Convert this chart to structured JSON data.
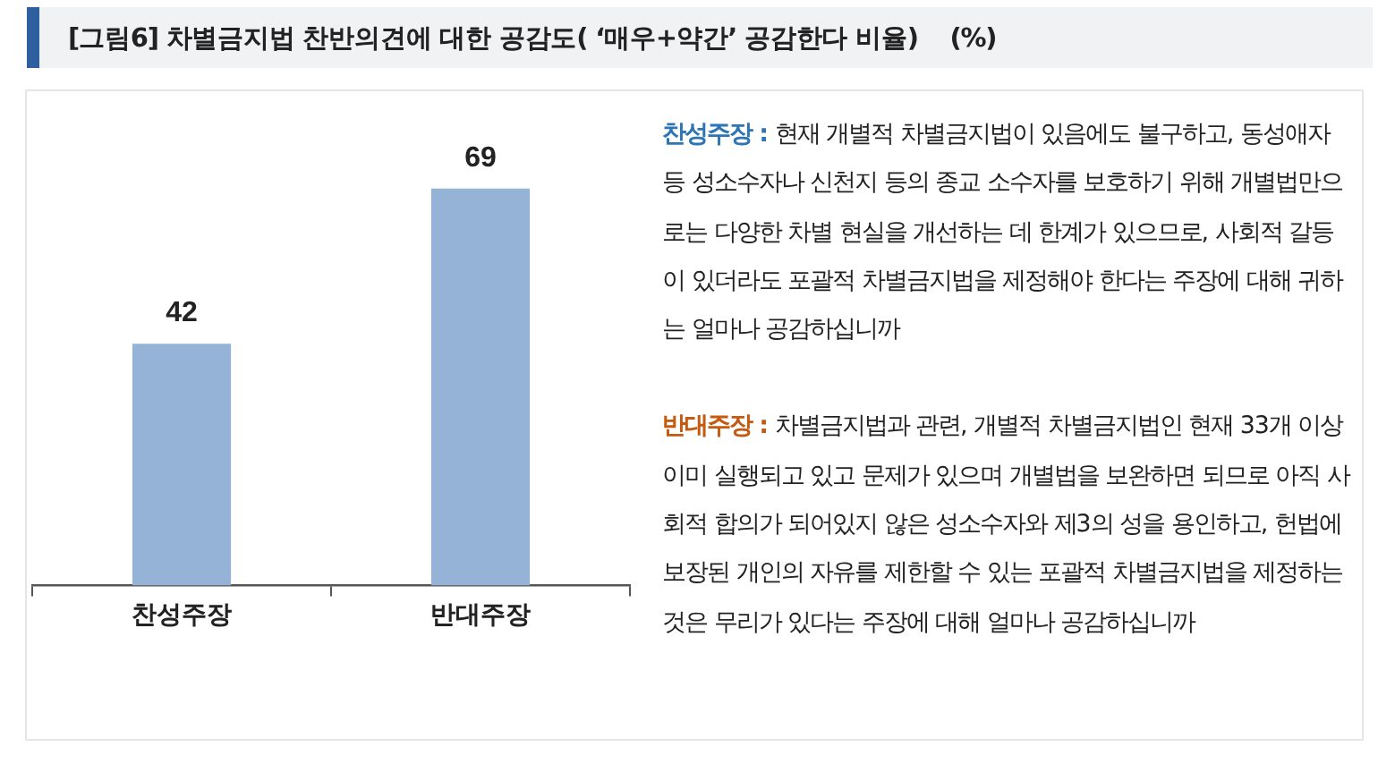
{
  "chart_data": {
    "type": "bar",
    "title": "[그림6] 차별금지법 찬반의견에 대한 공감도( ‘매우+약간’ 공감한다 비율)    (%)",
    "categories": [
      "찬성주장",
      "반대주장"
    ],
    "values": [
      42,
      69
    ],
    "color": "#95b3d7",
    "data_labels": true,
    "grid": false,
    "legend": false,
    "annotations": [
      "찬성주장 : 현재 개별적 차별금지법이 있음에도 불구하고, 동성애자 등 성소수자나 신천지 등의 종교 소수자를 보호하기 위해 개별법만으로는 다양한 차별 현실을 개선하는 데 한계가 있으므로, 사회적 갈등이 있더라도 포괄적 차별금지법을 제정해야 한다는 주장에 대해 귀하는 얼마나 공감하십니까",
      "반대주장 : 차별금지법과 관련, 개별적 차별금지법인 현재 33개 이상 이미 실행되고 있고 문제가 있으며 개별법을 보완하면 되므로 아직 사회적 합의가 되어있지 않은 성소수자와 제3의 성을 용인하고, 헌법에 보장된 개인의 자유를 제한할 수 있는 포괄적 차별금지법을 제정하는 것은 무리가 있다는 주장에 대해 얼마나 공감하십니까"
    ]
  }
}
